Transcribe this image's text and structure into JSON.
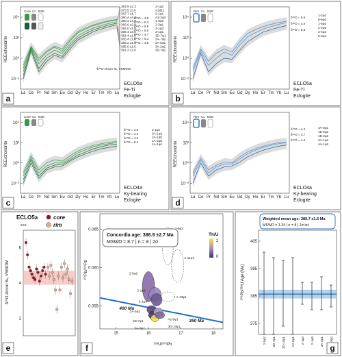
{
  "ree_elements": [
    "La",
    "Ce",
    "Pr",
    "Nd",
    "Sm",
    "Eu",
    "Gd",
    "Dy",
    "Ho",
    "Er",
    "Tm",
    "Yb",
    "Lu"
  ],
  "ree_tick_labels": [
    "La",
    "Ce",
    "Pr",
    "Nd",
    "Sm",
    "Eu",
    "Gd",
    "Dy",
    "Ho",
    "Er",
    "Tm",
    "Yb",
    "Lu"
  ],
  "ree_ylabel": "REE/chondrite",
  "ree_yticks": [
    "10⁴",
    "10²",
    "10⁰",
    "10⁻²"
  ],
  "panels": {
    "a": {
      "letter": "a",
      "sample": "ECLO5a",
      "rock": [
        "Fe-Ti",
        "Eclogite"
      ],
      "legend": [
        "Core",
        "CL",
        "BSE"
      ],
      "ages": [
        "383.9 ±2.3",
        "373.5 ±3.0",
        "387.7 ±1.7",
        "380.4 ±4.0",
        "380.4 ±4.0",
        "366.6 ±2.8",
        "392.0 ±1.8",
        "388.4 ±4.4",
        "384.4 ±1.5",
        "385.4 ±1.6",
        "385.2 ±1.7",
        "385.0 ±1.5",
        "391.3 ±1.8"
      ],
      "o_labels": [
        "δ¹⁸O = 4.8",
        "δ¹⁸O = 5.3",
        "δ¹⁸O = 5.5",
        "δ¹⁸O = 5.6",
        "δ¹⁸O = 4.7",
        "δ¹⁸O = 5.3",
        "δ¹⁸O = 4.8"
      ],
      "spots": [
        "2-1φ2",
        "A1@1",
        "2-1φ1",
        "A2-3φ2",
        "1-3φ1",
        "2-3φ1",
        "2-1φ3",
        "2-1φ1",
        "3D-7φ1",
        "3A-7φ2",
        "2A-5φ1",
        "3A-2φ1",
        "3D-7φ2"
      ],
      "footnote": "*δ¹⁸O zircon ‰, VSMOW"
    },
    "b": {
      "letter": "b",
      "sample": "ECLO5a",
      "rock": [
        "Fe-Ti",
        "Eclogite"
      ],
      "legend": [
        "Rim",
        "CL",
        "BSE"
      ],
      "o_labels": [
        "δ¹⁸O = 5.6",
        "δ¹⁸O = 4.5",
        "δ¹⁸O = 5.3"
      ],
      "spots": [
        "1-2φ1",
        "8-6φ2",
        "1-6φ2",
        "2-2φ2",
        "3-4φ1",
        "5-6φ1"
      ]
    },
    "c": {
      "letter": "c",
      "sample": "ECLO4a",
      "rock": [
        "Ky-bearing",
        "Eclogite"
      ],
      "legend": [
        "Core",
        "CL",
        "BSE"
      ],
      "o_labels": [
        "δ¹⁸O = 2.8",
        "δ¹⁸O = 4.2",
        "δ¹⁸O = 4.3",
        "δ¹⁸O = 6.4"
      ],
      "spots": [
        "2-1φ1",
        "3A-1φ1",
        "2A-1φ2",
        "1A-3φ2",
        "1A-1φ1"
      ]
    },
    "d": {
      "letter": "d",
      "sample": "ECLO4a",
      "rock": [
        "Ky-bearing",
        "Eclogite"
      ],
      "legend": [
        "Rim",
        "CL",
        "BSE"
      ],
      "o_labels": [
        "δ¹⁸O = 4.4",
        "δ¹⁸O = 4.7",
        "δ¹⁸O = 4.4"
      ],
      "spots": [
        "4A-6φ1",
        "1B-8φ1",
        "1B-3φ1",
        "3A-1φ1",
        "4A-1φ2"
      ]
    },
    "e": {
      "letter": "e",
      "title": "ECLO5a",
      "legend_core": "core",
      "legend_rim": "rim",
      "err_label": "2SE",
      "ylabel": "δ¹⁸O zircon ‰, VSMOW",
      "yticks": [
        "6",
        "4",
        "2"
      ]
    },
    "f": {
      "letter": "f",
      "concordia": "Concordia age: 386.9 ±2.7 Ma",
      "mswd": "MSWD = 8.7  |  n = 8  |  2σ",
      "ylabel": "²⁰⁷Pb/²⁰⁶Pb",
      "xlabel": "²³⁸U/²⁰⁶Pb",
      "xticks": [
        "15",
        "16",
        "17",
        "18"
      ],
      "yticks": [
        "0.065",
        "0.060",
        "0.055"
      ],
      "thu": "Th/U",
      "thu_ticks": [
        "2",
        "0"
      ],
      "age400": "400 Ma",
      "age350": "350 Ma",
      "spots": [
        "2-6φ2",
        "2-11φ1",
        "2-5φ2",
        "2-1φ2",
        "2-1φ3",
        "A-13φ1",
        "3A-3φ1",
        "3D-7φ1",
        "3A-3φ2",
        "A2-9φ1",
        "3D-14φ1"
      ]
    },
    "g": {
      "letter": "g",
      "title": "Weighted mean age: 385.7 ±1.6 Ma",
      "subtitle": "MSWD = 1.34  |  n = 8  |  2σ int.",
      "ylabel": "²⁰⁶Pb/²³⁸U Age (Ma)",
      "yticks": [
        "405",
        "395",
        "385",
        "375"
      ],
      "spots": [
        "2-5φ2",
        "3D-7φ1",
        "3D-14φ1",
        "A2-9φ1",
        "2-1φ2",
        "2-1φ3",
        "3A-3φ1",
        "3A-3φ2"
      ]
    }
  },
  "chart_data": [
    {
      "type": "line",
      "panel": "a",
      "x": [
        "La",
        "Ce",
        "Pr",
        "Nd",
        "Sm",
        "Eu",
        "Gd",
        "Dy",
        "Ho",
        "Er",
        "Tm",
        "Yb",
        "Lu"
      ],
      "yscale": "log",
      "ylim": [
        0.001,
        100000
      ],
      "series": [
        {
          "values": [
            0.05,
            10,
            0.3,
            2,
            6,
            3,
            25,
            150,
            400,
            900,
            1500,
            2500,
            3500
          ]
        },
        {
          "values": [
            0.02,
            8,
            0.1,
            1,
            3,
            1.5,
            15,
            90,
            250,
            600,
            1000,
            1800,
            2500
          ]
        },
        {
          "values": [
            0.1,
            12,
            0.6,
            4,
            12,
            5,
            50,
            300,
            700,
            1500,
            2500,
            4000,
            5000
          ]
        },
        {
          "values": [
            0.01,
            5,
            0.05,
            0.5,
            2,
            1,
            8,
            60,
            150,
            400,
            700,
            1200,
            1800
          ]
        },
        {
          "values": [
            0.2,
            15,
            1,
            5,
            15,
            8,
            70,
            400,
            900,
            1800,
            3000,
            4500,
            6000
          ]
        }
      ]
    },
    {
      "type": "line",
      "panel": "b",
      "x": [
        "La",
        "Ce",
        "Pr",
        "Nd",
        "Sm",
        "Eu",
        "Gd",
        "Dy",
        "Ho",
        "Er",
        "Tm",
        "Yb",
        "Lu"
      ],
      "yscale": "log",
      "ylim": [
        0.001,
        100000
      ],
      "series": [
        {
          "values": [
            0.05,
            5,
            0.2,
            1,
            4,
            2,
            20,
            120,
            300,
            700,
            1200,
            2000,
            3000
          ]
        },
        {
          "values": [
            0.01,
            3,
            0.05,
            0.3,
            1,
            0.8,
            6,
            40,
            120,
            350,
            600,
            1000,
            1500
          ]
        },
        {
          "values": [
            0.1,
            8,
            0.5,
            3,
            8,
            4,
            40,
            250,
            600,
            1200,
            2000,
            3000,
            4000
          ]
        }
      ]
    },
    {
      "type": "line",
      "panel": "c",
      "x": [
        "La",
        "Ce",
        "Pr",
        "Nd",
        "Sm",
        "Eu",
        "Gd",
        "Dy",
        "Ho",
        "Er",
        "Tm",
        "Yb",
        "Lu"
      ],
      "yscale": "log",
      "ylim": [
        0.001,
        100000
      ],
      "series": [
        {
          "values": [
            0.05,
            3,
            0.1,
            0.5,
            1,
            1,
            3,
            10,
            20,
            40,
            60,
            80,
            100
          ]
        },
        {
          "values": [
            0.02,
            2,
            0.05,
            0.3,
            0.6,
            0.7,
            2,
            6,
            12,
            25,
            40,
            60,
            70
          ]
        },
        {
          "values": [
            0.1,
            5,
            0.2,
            1,
            2,
            1.5,
            5,
            15,
            30,
            55,
            80,
            110,
            130
          ]
        },
        {
          "values": [
            0.01,
            1,
            0.03,
            0.2,
            0.4,
            0.5,
            1.5,
            4,
            8,
            15,
            25,
            35,
            45
          ]
        }
      ]
    },
    {
      "type": "line",
      "panel": "d",
      "x": [
        "La",
        "Ce",
        "Pr",
        "Nd",
        "Sm",
        "Eu",
        "Gd",
        "Dy",
        "Ho",
        "Er",
        "Tm",
        "Yb",
        "Lu"
      ],
      "yscale": "log",
      "ylim": [
        0.001,
        100000
      ],
      "series": [
        {
          "values": [
            0.05,
            2,
            0.1,
            0.4,
            0.8,
            0.8,
            2.5,
            8,
            18,
            35,
            55,
            80,
            100
          ]
        },
        {
          "values": [
            0.01,
            1,
            0.05,
            0.2,
            0.4,
            0.5,
            1.2,
            4,
            9,
            18,
            30,
            45,
            60
          ]
        },
        {
          "values": [
            0.1,
            3,
            0.2,
            0.6,
            1.2,
            1,
            4,
            12,
            25,
            45,
            70,
            100,
            120
          ]
        }
      ]
    },
    {
      "type": "scatter",
      "panel": "e",
      "ylim": [
        1,
        7
      ],
      "series": [
        {
          "name": "core",
          "values": [
            6.3,
            5.6,
            4.9,
            4.7,
            4.5,
            4.3,
            4.2,
            4.8,
            4.6,
            4.1,
            4.4,
            4.7,
            4.9,
            4.5
          ]
        },
        {
          "name": "rim",
          "values": [
            4.9,
            4.4,
            5.0,
            4.6,
            4.2,
            3.6,
            2.5,
            4.4,
            3.6,
            4.9,
            4.3,
            5.1,
            4.5,
            4.8,
            4.2,
            3.4,
            4.1
          ]
        }
      ],
      "mean_band": [
        3.9,
        4.7
      ]
    },
    {
      "type": "scatter",
      "panel": "f",
      "xlabel": "²³⁸U/²⁰⁶Pb",
      "ylabel": "²⁰⁷Pb/²⁰⁶Pb",
      "xlim": [
        14.5,
        18.3
      ],
      "ylim": [
        0.052,
        0.067
      ],
      "ellipses": [
        {
          "label": "2-6φ2",
          "x": 16.6,
          "y": 0.0628
        },
        {
          "label": "2-11φ1",
          "x": 16.9,
          "y": 0.0602
        },
        {
          "label": "2-5φ2",
          "x": 16.0,
          "y": 0.0575
        },
        {
          "label": "2-1φ2",
          "x": 16.2,
          "y": 0.0565
        },
        {
          "label": "2-1φ3",
          "x": 16.25,
          "y": 0.0558
        },
        {
          "label": "A-13φ1",
          "x": 16.6,
          "y": 0.0562
        },
        {
          "label": "3A-3φ1",
          "x": 16.1,
          "y": 0.0545
        },
        {
          "label": "3D-7φ1",
          "x": 16.15,
          "y": 0.0538
        },
        {
          "label": "3A-3φ2",
          "x": 16.2,
          "y": 0.0534
        },
        {
          "label": "A2-9φ1",
          "x": 16.3,
          "y": 0.0542
        },
        {
          "label": "3D-14φ1",
          "x": 16.35,
          "y": 0.0538
        }
      ],
      "concordia_age": "386.9 ±2.7 Ma"
    },
    {
      "type": "bar",
      "panel": "g",
      "ylim": [
        371,
        409
      ],
      "categories": [
        "2-5φ2",
        "3D-7φ1",
        "3D-14φ1",
        "A2-9φ1",
        "2-1φ2",
        "2-1φ3",
        "3A-3φ1",
        "3A-3φ2"
      ],
      "values": [
        386,
        385,
        386,
        385,
        386,
        385,
        386,
        385
      ],
      "errors": [
        15,
        14,
        12,
        14,
        4,
        5,
        6,
        4
      ],
      "weighted_mean": 385.7
    }
  ]
}
